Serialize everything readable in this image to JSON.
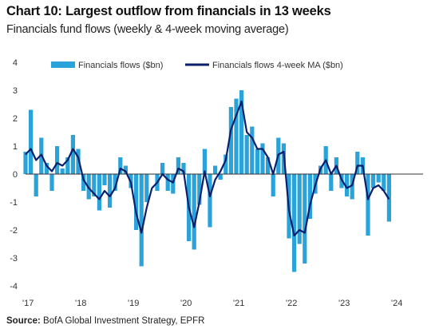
{
  "title": "Chart 10: Largest outflow from financials in 13 weeks",
  "subtitle": "Financials fund flows (weekly & 4-week moving average)",
  "source": {
    "label": "Source:",
    "text": " BofA Global Investment Strategy, EPFR"
  },
  "colors": {
    "bars": "#29a3d9",
    "ma_line": "#0a1f6e",
    "zero_line": "#333333"
  },
  "chart_data": {
    "type": "bar",
    "ylim": [
      -4,
      4
    ],
    "yticks": [
      "4",
      "3",
      "2",
      "1",
      "0",
      "-1",
      "-2",
      "-3",
      "-4"
    ],
    "xticks": [
      "'17",
      "'18",
      "'19",
      "'20",
      "'21",
      "'22",
      "'23",
      "'24"
    ],
    "xlim": [
      2017.0,
      2024.0
    ],
    "legend_placement": "top",
    "series": [
      {
        "name": "Financials flows ($bn)",
        "kind": "bar",
        "x": [
          2017.0,
          2017.1,
          2017.2,
          2017.3,
          2017.4,
          2017.5,
          2017.6,
          2017.7,
          2017.8,
          2017.9,
          2018.0,
          2018.1,
          2018.2,
          2018.3,
          2018.4,
          2018.5,
          2018.6,
          2018.7,
          2018.8,
          2018.9,
          2019.0,
          2019.1,
          2019.2,
          2019.3,
          2019.4,
          2019.5,
          2019.6,
          2019.7,
          2019.8,
          2019.9,
          2020.0,
          2020.1,
          2020.2,
          2020.3,
          2020.4,
          2020.5,
          2020.6,
          2020.7,
          2020.8,
          2020.9,
          2021.0,
          2021.1,
          2021.2,
          2021.3,
          2021.4,
          2021.5,
          2021.6,
          2021.7,
          2021.8,
          2021.9,
          2022.0,
          2022.1,
          2022.2,
          2022.3,
          2022.4,
          2022.5,
          2022.6,
          2022.7,
          2022.8,
          2022.9,
          2023.0,
          2023.1,
          2023.2,
          2023.3,
          2023.4,
          2023.5,
          2023.6,
          2023.7,
          2023.8,
          2023.9
        ],
        "values": [
          0.8,
          2.3,
          -0.8,
          1.3,
          0.4,
          -0.6,
          1.0,
          0.2,
          0.6,
          1.4,
          0.9,
          -0.6,
          -0.9,
          -0.8,
          -1.3,
          -0.4,
          -1.2,
          -0.6,
          0.6,
          0.3,
          -0.5,
          -2.0,
          -3.3,
          -1.0,
          0.0,
          -0.6,
          0.4,
          -0.6,
          -0.7,
          0.6,
          0.4,
          -2.4,
          -2.7,
          -1.1,
          0.9,
          -1.9,
          0.3,
          -0.2,
          0.7,
          2.4,
          2.7,
          3.0,
          1.4,
          1.7,
          0.9,
          1.1,
          0.6,
          -0.8,
          1.3,
          1.1,
          -2.3,
          -3.5,
          -2.5,
          -3.2,
          -1.6,
          -0.7,
          0.3,
          1.0,
          -0.6,
          0.6,
          -0.5,
          -0.8,
          -0.9,
          0.8,
          0.6,
          -2.2,
          -0.5,
          -0.3,
          -0.6,
          -1.7
        ]
      },
      {
        "name": "Financials flows 4-week MA ($bn)",
        "kind": "line",
        "x": [
          2017.0,
          2017.1,
          2017.2,
          2017.3,
          2017.4,
          2017.5,
          2017.6,
          2017.7,
          2017.8,
          2017.9,
          2018.0,
          2018.1,
          2018.2,
          2018.3,
          2018.4,
          2018.5,
          2018.6,
          2018.7,
          2018.8,
          2018.9,
          2019.0,
          2019.1,
          2019.2,
          2019.3,
          2019.4,
          2019.5,
          2019.6,
          2019.7,
          2019.8,
          2019.9,
          2020.0,
          2020.1,
          2020.2,
          2020.3,
          2020.4,
          2020.5,
          2020.6,
          2020.7,
          2020.8,
          2020.9,
          2021.0,
          2021.1,
          2021.2,
          2021.3,
          2021.4,
          2021.5,
          2021.6,
          2021.7,
          2021.8,
          2021.9,
          2022.0,
          2022.1,
          2022.2,
          2022.3,
          2022.4,
          2022.5,
          2022.6,
          2022.7,
          2022.8,
          2022.9,
          2023.0,
          2023.1,
          2023.2,
          2023.3,
          2023.4,
          2023.5,
          2023.6,
          2023.7,
          2023.8,
          2023.9
        ],
        "values": [
          0.7,
          0.9,
          0.5,
          0.7,
          0.3,
          0.1,
          0.4,
          0.3,
          0.5,
          0.9,
          0.6,
          -0.2,
          -0.5,
          -0.7,
          -0.9,
          -0.6,
          -0.8,
          -0.5,
          0.2,
          0.1,
          -0.3,
          -1.4,
          -2.1,
          -1.2,
          -0.5,
          -0.3,
          0.0,
          -0.2,
          -0.3,
          0.2,
          0.1,
          -1.2,
          -1.9,
          -1.0,
          0.1,
          -0.8,
          -0.2,
          0.1,
          0.5,
          1.6,
          2.1,
          2.6,
          1.5,
          1.3,
          0.9,
          0.9,
          0.6,
          0.0,
          0.7,
          0.8,
          -1.3,
          -2.2,
          -2.0,
          -2.1,
          -1.1,
          -0.4,
          0.2,
          0.5,
          0.0,
          0.3,
          -0.2,
          -0.5,
          -0.4,
          0.3,
          0.3,
          -0.9,
          -0.5,
          -0.4,
          -0.6,
          -0.9
        ]
      }
    ]
  }
}
